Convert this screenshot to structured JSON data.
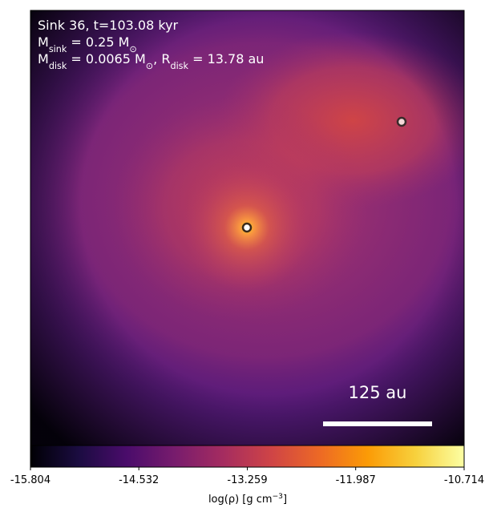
{
  "chart_data": {
    "type": "density-map",
    "annotation_lines": [
      [
        {
          "text": "Sink 36, t=103.08 kyr"
        }
      ],
      [
        {
          "text": "M"
        },
        {
          "sub": "sink"
        },
        {
          "text": " = 0.25 M"
        },
        {
          "sub": "⊙"
        }
      ],
      [
        {
          "text": "M"
        },
        {
          "sub": "disk"
        },
        {
          "text": " = 0.0065 M"
        },
        {
          "sub": "⊙"
        },
        {
          "text": ", R"
        },
        {
          "sub": "disk"
        },
        {
          "text": " = 13.78 au"
        }
      ]
    ],
    "scalebar_label": "125 au",
    "colorbar_label": [
      {
        "text": "log(ρ) [g cm"
      },
      {
        "sup": "−3"
      },
      {
        "text": "]"
      }
    ],
    "clim": [
      -15.804,
      -10.714
    ],
    "cticks": [
      -15.804,
      -14.532,
      -13.259,
      -11.987,
      -10.714
    ],
    "colormap": "inferno"
  }
}
